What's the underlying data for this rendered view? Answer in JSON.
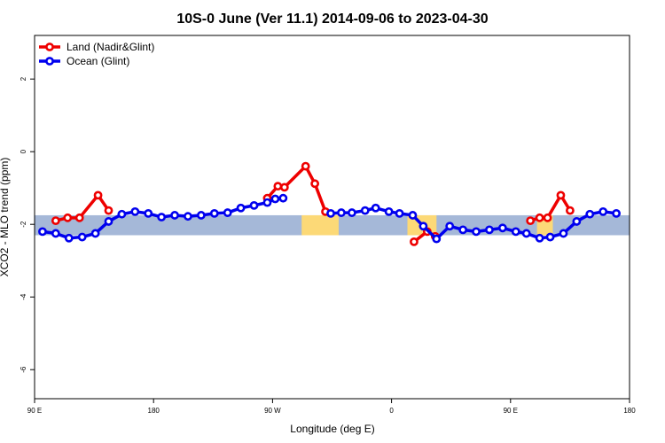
{
  "chart_data": {
    "type": "line",
    "title": "10S-0 June (Ver 11.1)   2014-09-06 to 2023-04-30",
    "xlabel": "Longitude (deg E)",
    "ylabel": "XCO2 - MLO trend (ppm)",
    "xlim": [
      90,
      450
    ],
    "ylim": [
      -6.8,
      3.2
    ],
    "x_ticks": [
      {
        "value": 90,
        "label": "90 E"
      },
      {
        "value": 180,
        "label": "180"
      },
      {
        "value": 270,
        "label": "90 W"
      },
      {
        "value": 360,
        "label": "0"
      },
      {
        "value": 450,
        "label": "90 E"
      },
      {
        "value": 540,
        "label": "180"
      }
    ],
    "y_ticks": [
      {
        "value": 2,
        "label": "2"
      },
      {
        "value": 0,
        "label": "0"
      },
      {
        "value": -2,
        "label": "-2"
      },
      {
        "value": -4,
        "label": "-4"
      },
      {
        "value": -6,
        "label": "-6"
      }
    ],
    "x_domain_range": [
      90,
      540
    ],
    "band": {
      "y_min": -2.3,
      "y_max": -1.75,
      "ocean_color": "#a5b8d8",
      "land_color": "#fcd977"
    },
    "land_segments": [
      {
        "x_start": 292,
        "x_end": 320
      },
      {
        "x_start": 372,
        "x_end": 394
      },
      {
        "x_start": 470,
        "x_end": 482
      }
    ],
    "legend": {
      "position": "top-left"
    },
    "series": [
      {
        "name": "Land (Nadir&Glint)",
        "color": "#ee0000",
        "segments": [
          {
            "x": [
              106,
              115,
              124,
              138,
              146
            ],
            "y": [
              -1.9,
              -1.82,
              -1.82,
              -1.2,
              -1.62
            ]
          },
          {
            "x": [
              266,
              274,
              279,
              295,
              302,
              310
            ],
            "y": [
              -1.28,
              -0.95,
              -0.98,
              -0.4,
              -0.88,
              -1.65
            ]
          },
          {
            "x": [
              377,
              387,
              393
            ],
            "y": [
              -2.48,
              -2.2,
              -2.33
            ]
          },
          {
            "x": [
              465,
              472,
              478,
              488,
              495
            ],
            "y": [
              -1.9,
              -1.82,
              -1.82,
              -1.2,
              -1.62
            ]
          }
        ]
      },
      {
        "name": "Ocean (Glint)",
        "color": "#0000ee",
        "segments": [
          {
            "x": [
              96,
              106,
              116,
              126,
              136,
              146,
              156,
              166,
              176,
              186,
              196,
              206,
              216,
              226,
              236,
              246,
              256,
              266,
              272,
              278
            ],
            "y": [
              -2.2,
              -2.25,
              -2.38,
              -2.35,
              -2.25,
              -1.92,
              -1.72,
              -1.65,
              -1.7,
              -1.8,
              -1.75,
              -1.78,
              -1.75,
              -1.7,
              -1.68,
              -1.55,
              -1.48,
              -1.4,
              -1.3,
              -1.28
            ]
          },
          {
            "x": [
              314,
              322,
              330,
              340,
              348,
              358,
              366,
              376,
              384,
              394,
              404,
              414,
              424,
              434,
              444,
              454,
              462,
              472,
              480,
              490,
              500,
              510,
              520,
              530
            ],
            "y": [
              -1.7,
              -1.68,
              -1.68,
              -1.62,
              -1.55,
              -1.65,
              -1.7,
              -1.75,
              -2.05,
              -2.4,
              -2.05,
              -2.15,
              -2.2,
              -2.15,
              -2.1,
              -2.2,
              -2.25,
              -2.38,
              -2.35,
              -2.25,
              -1.92,
              -1.72,
              -1.65,
              -1.7
            ]
          }
        ]
      }
    ]
  }
}
